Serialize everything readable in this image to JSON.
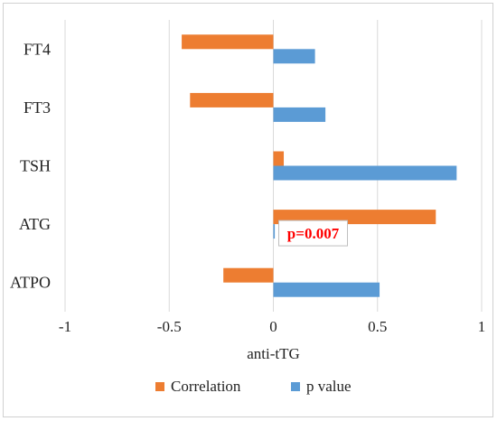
{
  "chart_data": {
    "type": "bar",
    "orientation": "horizontal",
    "categories": [
      "FT4",
      "FT3",
      "TSH",
      "ATG",
      "ATPO"
    ],
    "series": [
      {
        "name": "Correlation",
        "color": "#ed7d31",
        "values": [
          -0.44,
          -0.4,
          0.05,
          0.78,
          -0.24
        ]
      },
      {
        "name": "p value",
        "color": "#5b9bd5",
        "values": [
          0.2,
          0.25,
          0.88,
          0.007,
          0.51
        ]
      }
    ],
    "xlabel": "anti-tTG",
    "xlim": [
      -1,
      1
    ],
    "xticks": [
      -1,
      -0.5,
      0,
      0.5,
      1
    ],
    "xtick_labels": [
      "-1",
      "-0.5",
      "0",
      "0.5",
      "1"
    ],
    "grid": "vertical",
    "legend": "bottom",
    "annotation": {
      "text": "p=0.007",
      "category": "ATG",
      "color": "#ff0000"
    }
  }
}
